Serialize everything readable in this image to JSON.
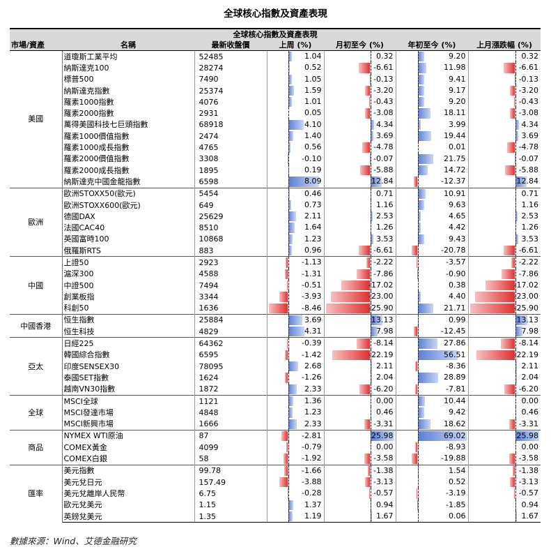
{
  "title": "全球核心指數及資產表現",
  "table_banner": "全球核心指數及資產表現",
  "columns": [
    "市場/資產",
    "名稱",
    "最新收盤價",
    "上周 (%)",
    "月初至今 (%)",
    "年初至今 (%)",
    "上月漲跌幅 (%)"
  ],
  "groups": [
    {
      "region": "美國",
      "rows": [
        {
          "name": "道瓊斯工業平均",
          "close": "52485",
          "week": "1.04",
          "mtd": "0.32",
          "ytd": "9.20",
          "lastm": "0.32"
        },
        {
          "name": "納斯達克100",
          "close": "28274",
          "week": "0.52",
          "mtd": "-6.61",
          "ytd": "11.98",
          "lastm": "-6.61"
        },
        {
          "name": "標普500",
          "close": "7490",
          "week": "1.05",
          "mtd": "-0.13",
          "ytd": "9.41",
          "lastm": "-0.13"
        },
        {
          "name": "納斯達克指數",
          "close": "25374",
          "week": "1.59",
          "mtd": "-3.20",
          "ytd": "9.17",
          "lastm": "-3.20"
        },
        {
          "name": "羅素1000指數",
          "close": "4076",
          "week": "1.01",
          "mtd": "-0.43",
          "ytd": "9.20",
          "lastm": "-0.43"
        },
        {
          "name": "羅素2000指數",
          "close": "2931",
          "week": "0.05",
          "mtd": "-3.08",
          "ytd": "18.11",
          "lastm": "-3.08"
        },
        {
          "name": "萬得美國科技七巨頭指數",
          "close": "68918",
          "week": "4.10",
          "mtd": "4.34",
          "ytd": "3.99",
          "lastm": "4.34"
        },
        {
          "name": "羅素1000價值指數",
          "close": "2474",
          "week": "1.40",
          "mtd": "3.69",
          "ytd": "19.44",
          "lastm": "3.69"
        },
        {
          "name": "羅素1000成長指數",
          "close": "4765",
          "week": "0.56",
          "mtd": "-4.78",
          "ytd": "0.01",
          "lastm": "-4.78"
        },
        {
          "name": "羅素2000價值指數",
          "close": "3308",
          "week": "-0.10",
          "mtd": "-0.07",
          "ytd": "21.75",
          "lastm": "-0.07"
        },
        {
          "name": "羅素2000成長指數",
          "close": "1895",
          "week": "0.19",
          "mtd": "-5.88",
          "ytd": "14.72",
          "lastm": "-5.88"
        },
        {
          "name": "納斯達克中國金龍指數",
          "close": "6598",
          "week": "8.09",
          "mtd": "12.84",
          "ytd": "-12.37",
          "lastm": "12.84"
        }
      ]
    },
    {
      "region": "歐洲",
      "rows": [
        {
          "name": "歐洲STOXX50(歐元)",
          "close": "5454",
          "week": "0.46",
          "mtd": "0.71",
          "ytd": "10.91",
          "lastm": "0.71"
        },
        {
          "name": "歐洲STOXX600(歐元)",
          "close": "649",
          "week": "0.73",
          "mtd": "1.16",
          "ytd": "9.63",
          "lastm": "1.16"
        },
        {
          "name": "德國DAX",
          "close": "25629",
          "week": "2.11",
          "mtd": "2.53",
          "ytd": "4.65",
          "lastm": "2.53"
        },
        {
          "name": "法國CAC40",
          "close": "8510",
          "week": "1.64",
          "mtd": "1.26",
          "ytd": "4.42",
          "lastm": "1.26"
        },
        {
          "name": "英國富時100",
          "close": "10868",
          "week": "1.23",
          "mtd": "3.53",
          "ytd": "9.43",
          "lastm": "3.53"
        },
        {
          "name": "俄羅斯RTS",
          "close": "883",
          "week": "0.96",
          "mtd": "-6.61",
          "ytd": "-20.78",
          "lastm": "-6.61"
        }
      ]
    },
    {
      "region": "中國",
      "rows": [
        {
          "name": "上證50",
          "close": "2923",
          "week": "-1.13",
          "mtd": "-2.22",
          "ytd": "-3.57",
          "lastm": "-2.22"
        },
        {
          "name": "滬深300",
          "close": "4588",
          "week": "-1.31",
          "mtd": "-7.86",
          "ytd": "-0.90",
          "lastm": "-7.86"
        },
        {
          "name": "中證500",
          "close": "7494",
          "week": "-0.51",
          "mtd": "-17.02",
          "ytd": "0.38",
          "lastm": "-17.02"
        },
        {
          "name": "創業板指",
          "close": "3344",
          "week": "-3.93",
          "mtd": "-23.00",
          "ytd": "4.40",
          "lastm": "-23.00"
        },
        {
          "name": "科創50",
          "close": "1636",
          "week": "-8.46",
          "mtd": "-25.90",
          "ytd": "21.71",
          "lastm": "-25.90"
        }
      ]
    },
    {
      "region": "中國香港",
      "rows": [
        {
          "name": "恒生指數",
          "close": "25884",
          "week": "3.69",
          "mtd": "13.13",
          "ytd": "0.99",
          "lastm": "13.13"
        },
        {
          "name": "恒生科技",
          "close": "4829",
          "week": "4.31",
          "mtd": "7.98",
          "ytd": "-12.45",
          "lastm": "7.98"
        }
      ]
    },
    {
      "region": "亞太",
      "rows": [
        {
          "name": "日經225",
          "close": "64362",
          "week": "-0.39",
          "mtd": "-8.14",
          "ytd": "27.86",
          "lastm": "-8.14"
        },
        {
          "name": "韓國綜合指數",
          "close": "6595",
          "week": "-1.42",
          "mtd": "-22.19",
          "ytd": "56.51",
          "lastm": "-22.19"
        },
        {
          "name": "印度SENSEX30",
          "close": "78095",
          "week": "2.68",
          "mtd": "2.11",
          "ytd": "-8.36",
          "lastm": "2.11"
        },
        {
          "name": "泰國SET指數",
          "close": "1624",
          "week": "-1.26",
          "mtd": "2.04",
          "ytd": "28.89",
          "lastm": "2.04"
        },
        {
          "name": "越南VN30指數",
          "close": "1872",
          "week": "2.33",
          "mtd": "-6.20",
          "ytd": "-7.81",
          "lastm": "-6.20"
        }
      ]
    },
    {
      "region": "全球",
      "rows": [
        {
          "name": "MSCI全球",
          "close": "1121",
          "week": "1.36",
          "mtd": "0.00",
          "ytd": "10.44",
          "lastm": "0.00"
        },
        {
          "name": "MSCI發達市場",
          "close": "4848",
          "week": "1.23",
          "mtd": "0.46",
          "ytd": "9.42",
          "lastm": "0.46"
        },
        {
          "name": "MSCI新興市場",
          "close": "1666",
          "week": "2.33",
          "mtd": "-3.31",
          "ytd": "18.62",
          "lastm": "-3.31"
        }
      ]
    },
    {
      "region": "商品",
      "rows": [
        {
          "name": "NYMEX WTI原油",
          "close": "87",
          "week": "-2.81",
          "mtd": "25.98",
          "ytd": "69.02",
          "lastm": "25.98"
        },
        {
          "name": "COMEX黃金",
          "close": "4099",
          "week": "-0.79",
          "mtd": "0.00",
          "ytd": "-8.93",
          "lastm": "0.00"
        },
        {
          "name": "COMEX白銀",
          "close": "58",
          "week": "-1.92",
          "mtd": "-3.58",
          "ytd": "-19.88",
          "lastm": "-3.58"
        }
      ]
    },
    {
      "region": "匯率",
      "rows": [
        {
          "name": "美元指數",
          "close": "99.78",
          "week": "-1.66",
          "mtd": "-1.38",
          "ytd": "1.54",
          "lastm": "-1.38"
        },
        {
          "name": "美元兌日元",
          "close": "157.49",
          "week": "-3.88",
          "mtd": "-3.13",
          "ytd": "0.52",
          "lastm": "-3.13"
        },
        {
          "name": "美元兌離岸人民幣",
          "close": "6.75",
          "week": "-0.28",
          "mtd": "-0.57",
          "ytd": "-3.19",
          "lastm": "-0.57"
        },
        {
          "name": "歐元兌美元",
          "close": "1.15",
          "week": "1.37",
          "mtd": "0.94",
          "ytd": "-1.85",
          "lastm": "0.94"
        },
        {
          "name": "英鎊兌美元",
          "close": "1.35",
          "week": "1.19",
          "mtd": "1.67",
          "ytd": "0.06",
          "lastm": "1.67"
        }
      ]
    }
  ],
  "source": "數據來源：Wind、艾德金融研究",
  "colors": {
    "positive_bar": "#5b7fd6",
    "negative_bar": "#e03030",
    "header_bg": "#d9d9d9"
  }
}
